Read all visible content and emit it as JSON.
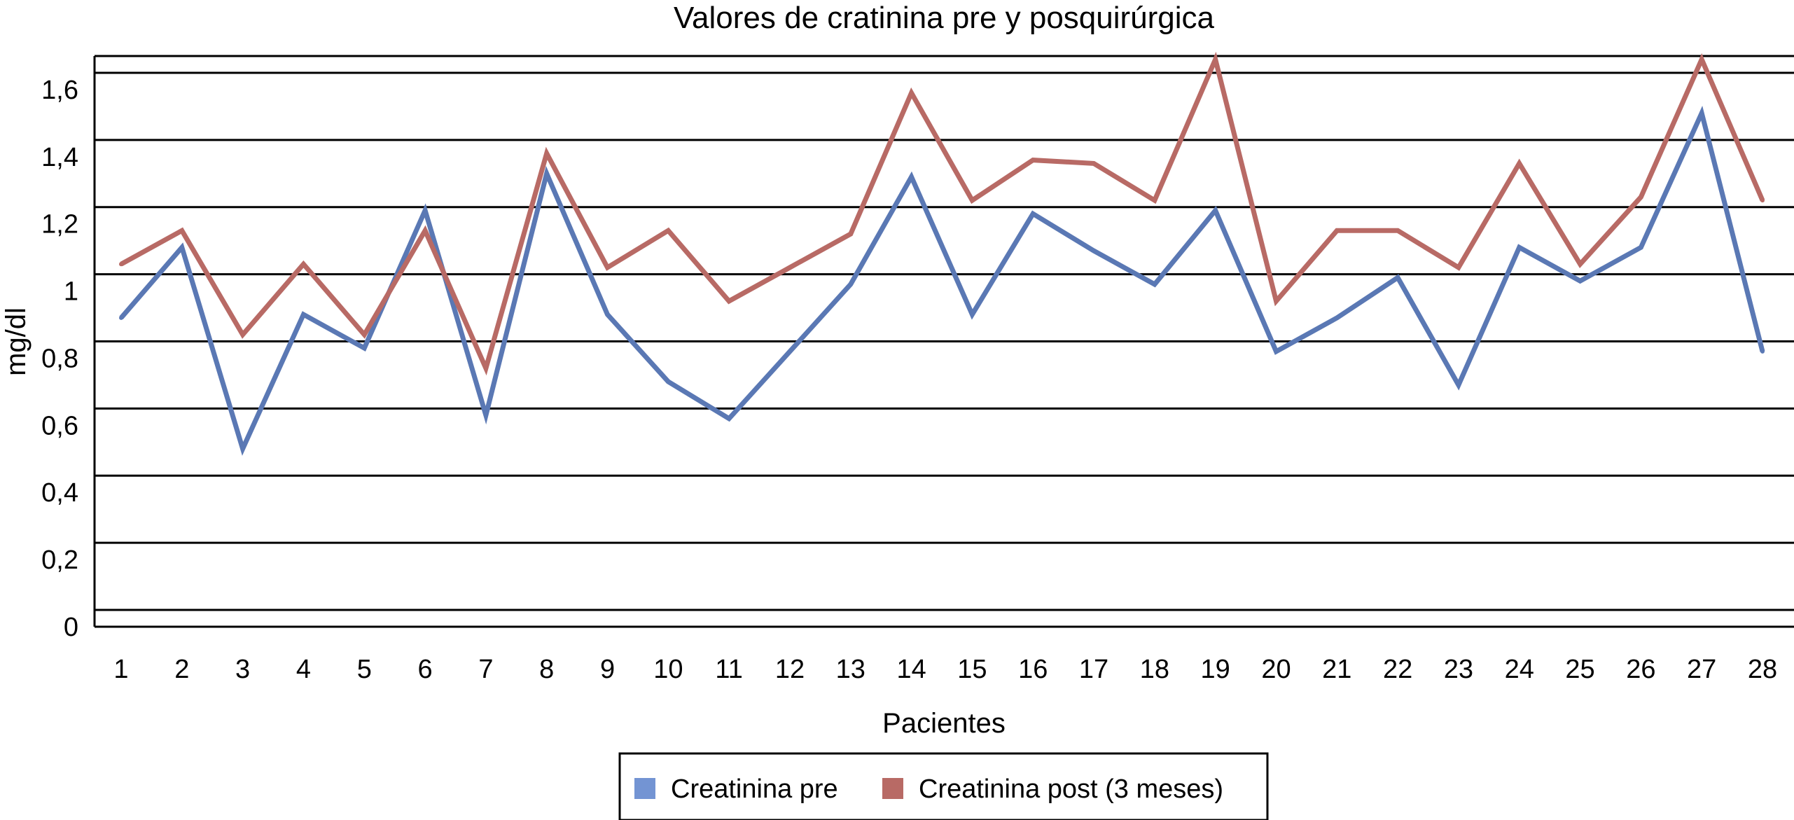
{
  "chart_data": {
    "type": "line",
    "title": "Valores de cratinina pre y posquirúrgica",
    "xlabel": "Pacientes",
    "ylabel": "mg/dl",
    "categories": [
      "1",
      "2",
      "3",
      "4",
      "5",
      "6",
      "7",
      "8",
      "9",
      "10",
      "11",
      "12",
      "13",
      "14",
      "15",
      "16",
      "17",
      "18",
      "19",
      "20",
      "21",
      "22",
      "23",
      "24",
      "25",
      "26",
      "27",
      "28"
    ],
    "y_ticks": [
      "0",
      "0,2",
      "0,4",
      "0,6",
      "0,8",
      "1",
      "1,2",
      "1,4",
      "1,6"
    ],
    "ylim": [
      0,
      1.7
    ],
    "grid": true,
    "legend_position": "bottom",
    "series": [
      {
        "name": "Creatinina pre",
        "color": "#5a78b4",
        "values": [
          0.92,
          1.13,
          0.53,
          0.93,
          0.83,
          1.24,
          0.63,
          1.35,
          0.93,
          0.73,
          0.62,
          0.82,
          1.02,
          1.34,
          0.93,
          1.23,
          1.12,
          1.02,
          1.24,
          0.82,
          0.92,
          1.04,
          0.72,
          1.13,
          1.03,
          1.13,
          1.53,
          0.82
        ]
      },
      {
        "name": "Creatinina post (3 meses)",
        "color": "#b86a65",
        "values": [
          1.08,
          1.18,
          0.87,
          1.08,
          0.87,
          1.18,
          0.77,
          1.41,
          1.07,
          1.18,
          0.97,
          1.07,
          1.17,
          1.59,
          1.27,
          1.39,
          1.38,
          1.27,
          1.69,
          0.97,
          1.18,
          1.18,
          1.07,
          1.38,
          1.08,
          1.28,
          1.69,
          1.27
        ]
      }
    ]
  }
}
